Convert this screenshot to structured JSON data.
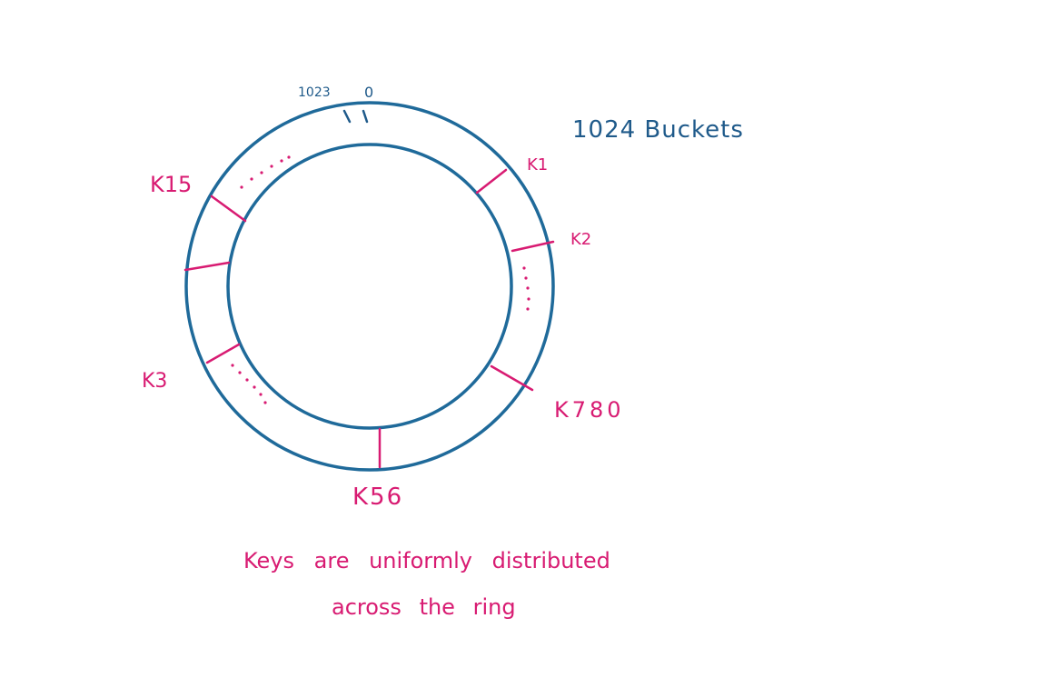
{
  "diagram": {
    "top_labels": {
      "left": "1023",
      "right": "0"
    },
    "bucket_count_label": "1024 Buckets",
    "keys": [
      {
        "label": "K1"
      },
      {
        "label": "K2"
      },
      {
        "label": "K780"
      },
      {
        "label": "K56"
      },
      {
        "label": "K3"
      },
      {
        "label": "K15"
      }
    ],
    "caption": {
      "line1": "Keys are uniformly distributed",
      "line2": "across the ring"
    },
    "colors": {
      "ring": "#1f6a9a",
      "blue_text": "#1f5a8a",
      "keys": "#d81b72"
    }
  }
}
